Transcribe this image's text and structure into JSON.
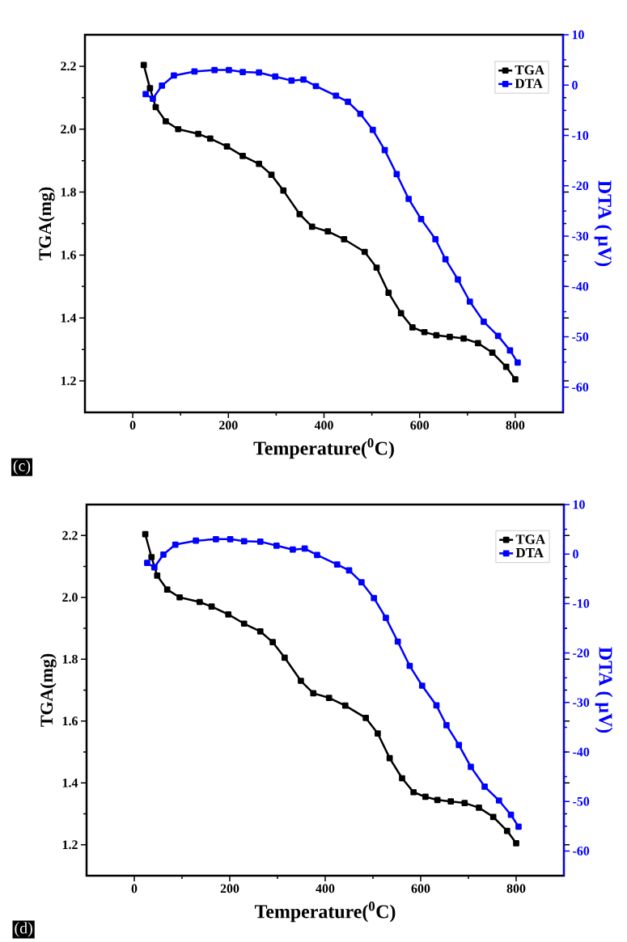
{
  "chart_data": [
    {
      "type": "line",
      "xlabel": "Temperature($^{0}$C)",
      "ylabel": "TGA(mg)",
      "y2label": "DTA ( μV)",
      "annotations": [
        "(c)"
      ],
      "series": [
        {
          "name": "TGA",
          "color": "#000000",
          "x": [
            23,
            36,
            48,
            69,
            95,
            137,
            162,
            197,
            230,
            264,
            290,
            315,
            349,
            375,
            408,
            442,
            485,
            510,
            535,
            561,
            585,
            610,
            635,
            663,
            692,
            722,
            752,
            781,
            800
          ],
          "values": [
            2.204,
            2.13,
            2.07,
            2.025,
            2.0,
            1.985,
            1.97,
            1.945,
            1.915,
            1.89,
            1.855,
            1.805,
            1.73,
            1.69,
            1.675,
            1.65,
            1.61,
            1.56,
            1.48,
            1.415,
            1.37,
            1.355,
            1.345,
            1.34,
            1.335,
            1.32,
            1.29,
            1.245,
            1.205
          ]
        },
        {
          "name": "DTA",
          "color": "#0000ff",
          "axis": "y2",
          "x": [
            27,
            42,
            61,
            86,
            129,
            171,
            201,
            230,
            264,
            298,
            332,
            357,
            383,
            425,
            450,
            476,
            502,
            527,
            552,
            577,
            603,
            633,
            654,
            680,
            705,
            734,
            764,
            789,
            805
          ],
          "values": [
            -1.8,
            -2.7,
            -0.1,
            1.9,
            2.7,
            3.0,
            3.0,
            2.6,
            2.5,
            1.7,
            0.9,
            1.1,
            -0.2,
            -2.1,
            -3.3,
            -5.7,
            -8.9,
            -12.9,
            -17.7,
            -22.6,
            -26.6,
            -30.6,
            -34.6,
            -38.6,
            -43.0,
            -47.0,
            -49.8,
            -52.7,
            -55.1
          ]
        }
      ],
      "xlim": [
        -100,
        900
      ],
      "xticks": [
        0,
        200,
        400,
        600,
        800
      ],
      "ylim": [
        1.1,
        2.3
      ],
      "yticks": [
        1.2,
        1.4,
        1.6,
        1.8,
        {
          "value": 2,
          "label": "2.0"
        },
        2.2
      ],
      "y2lim": [
        -65,
        10
      ],
      "y2ticks": [
        -60,
        -50,
        -40,
        -30,
        -20,
        -10,
        0,
        10
      ],
      "legend": "top right",
      "marker": "square",
      "line_style": "solid"
    },
    {
      "type": "line",
      "xlabel": "Temperature($^{0}$C)",
      "ylabel": "TGA(mg)",
      "y2label": "DTA ( μV)",
      "annotations": [
        "(d)"
      ],
      "series": [
        {
          "name": "TGA",
          "color": "#000000",
          "x": [
            23,
            36,
            48,
            69,
            95,
            137,
            162,
            197,
            230,
            264,
            290,
            315,
            349,
            375,
            408,
            442,
            485,
            510,
            535,
            561,
            585,
            610,
            635,
            663,
            692,
            722,
            752,
            781,
            800
          ],
          "values": [
            2.204,
            2.13,
            2.07,
            2.025,
            2.0,
            1.985,
            1.97,
            1.945,
            1.915,
            1.89,
            1.855,
            1.805,
            1.73,
            1.69,
            1.675,
            1.65,
            1.61,
            1.56,
            1.48,
            1.415,
            1.37,
            1.355,
            1.345,
            1.34,
            1.335,
            1.32,
            1.29,
            1.245,
            1.205
          ]
        },
        {
          "name": "DTA",
          "color": "#0000ff",
          "axis": "y2",
          "x": [
            27,
            42,
            61,
            86,
            129,
            171,
            201,
            230,
            264,
            298,
            332,
            357,
            383,
            425,
            450,
            476,
            502,
            527,
            552,
            577,
            603,
            633,
            654,
            680,
            705,
            734,
            764,
            789,
            805
          ],
          "values": [
            -1.8,
            -2.7,
            -0.1,
            1.9,
            2.7,
            3.0,
            3.0,
            2.6,
            2.5,
            1.7,
            0.9,
            1.1,
            -0.2,
            -2.1,
            -3.3,
            -5.7,
            -8.9,
            -12.9,
            -17.7,
            -22.6,
            -26.6,
            -30.6,
            -34.6,
            -38.6,
            -43.0,
            -47.0,
            -49.8,
            -52.7,
            -55.1
          ]
        }
      ],
      "xlim": [
        -100,
        900
      ],
      "xticks": [
        0,
        200,
        400,
        600,
        800
      ],
      "ylim": [
        1.1,
        2.3
      ],
      "yticks": [
        1.2,
        1.4,
        1.6,
        1.8,
        {
          "value": 2,
          "label": "2.0"
        },
        2.2
      ],
      "y2lim": [
        -65,
        10
      ],
      "y2ticks": [
        -60,
        -50,
        -40,
        -30,
        -20,
        -10,
        0,
        10
      ],
      "legend": "top right",
      "marker": "square",
      "line_style": "solid"
    }
  ]
}
